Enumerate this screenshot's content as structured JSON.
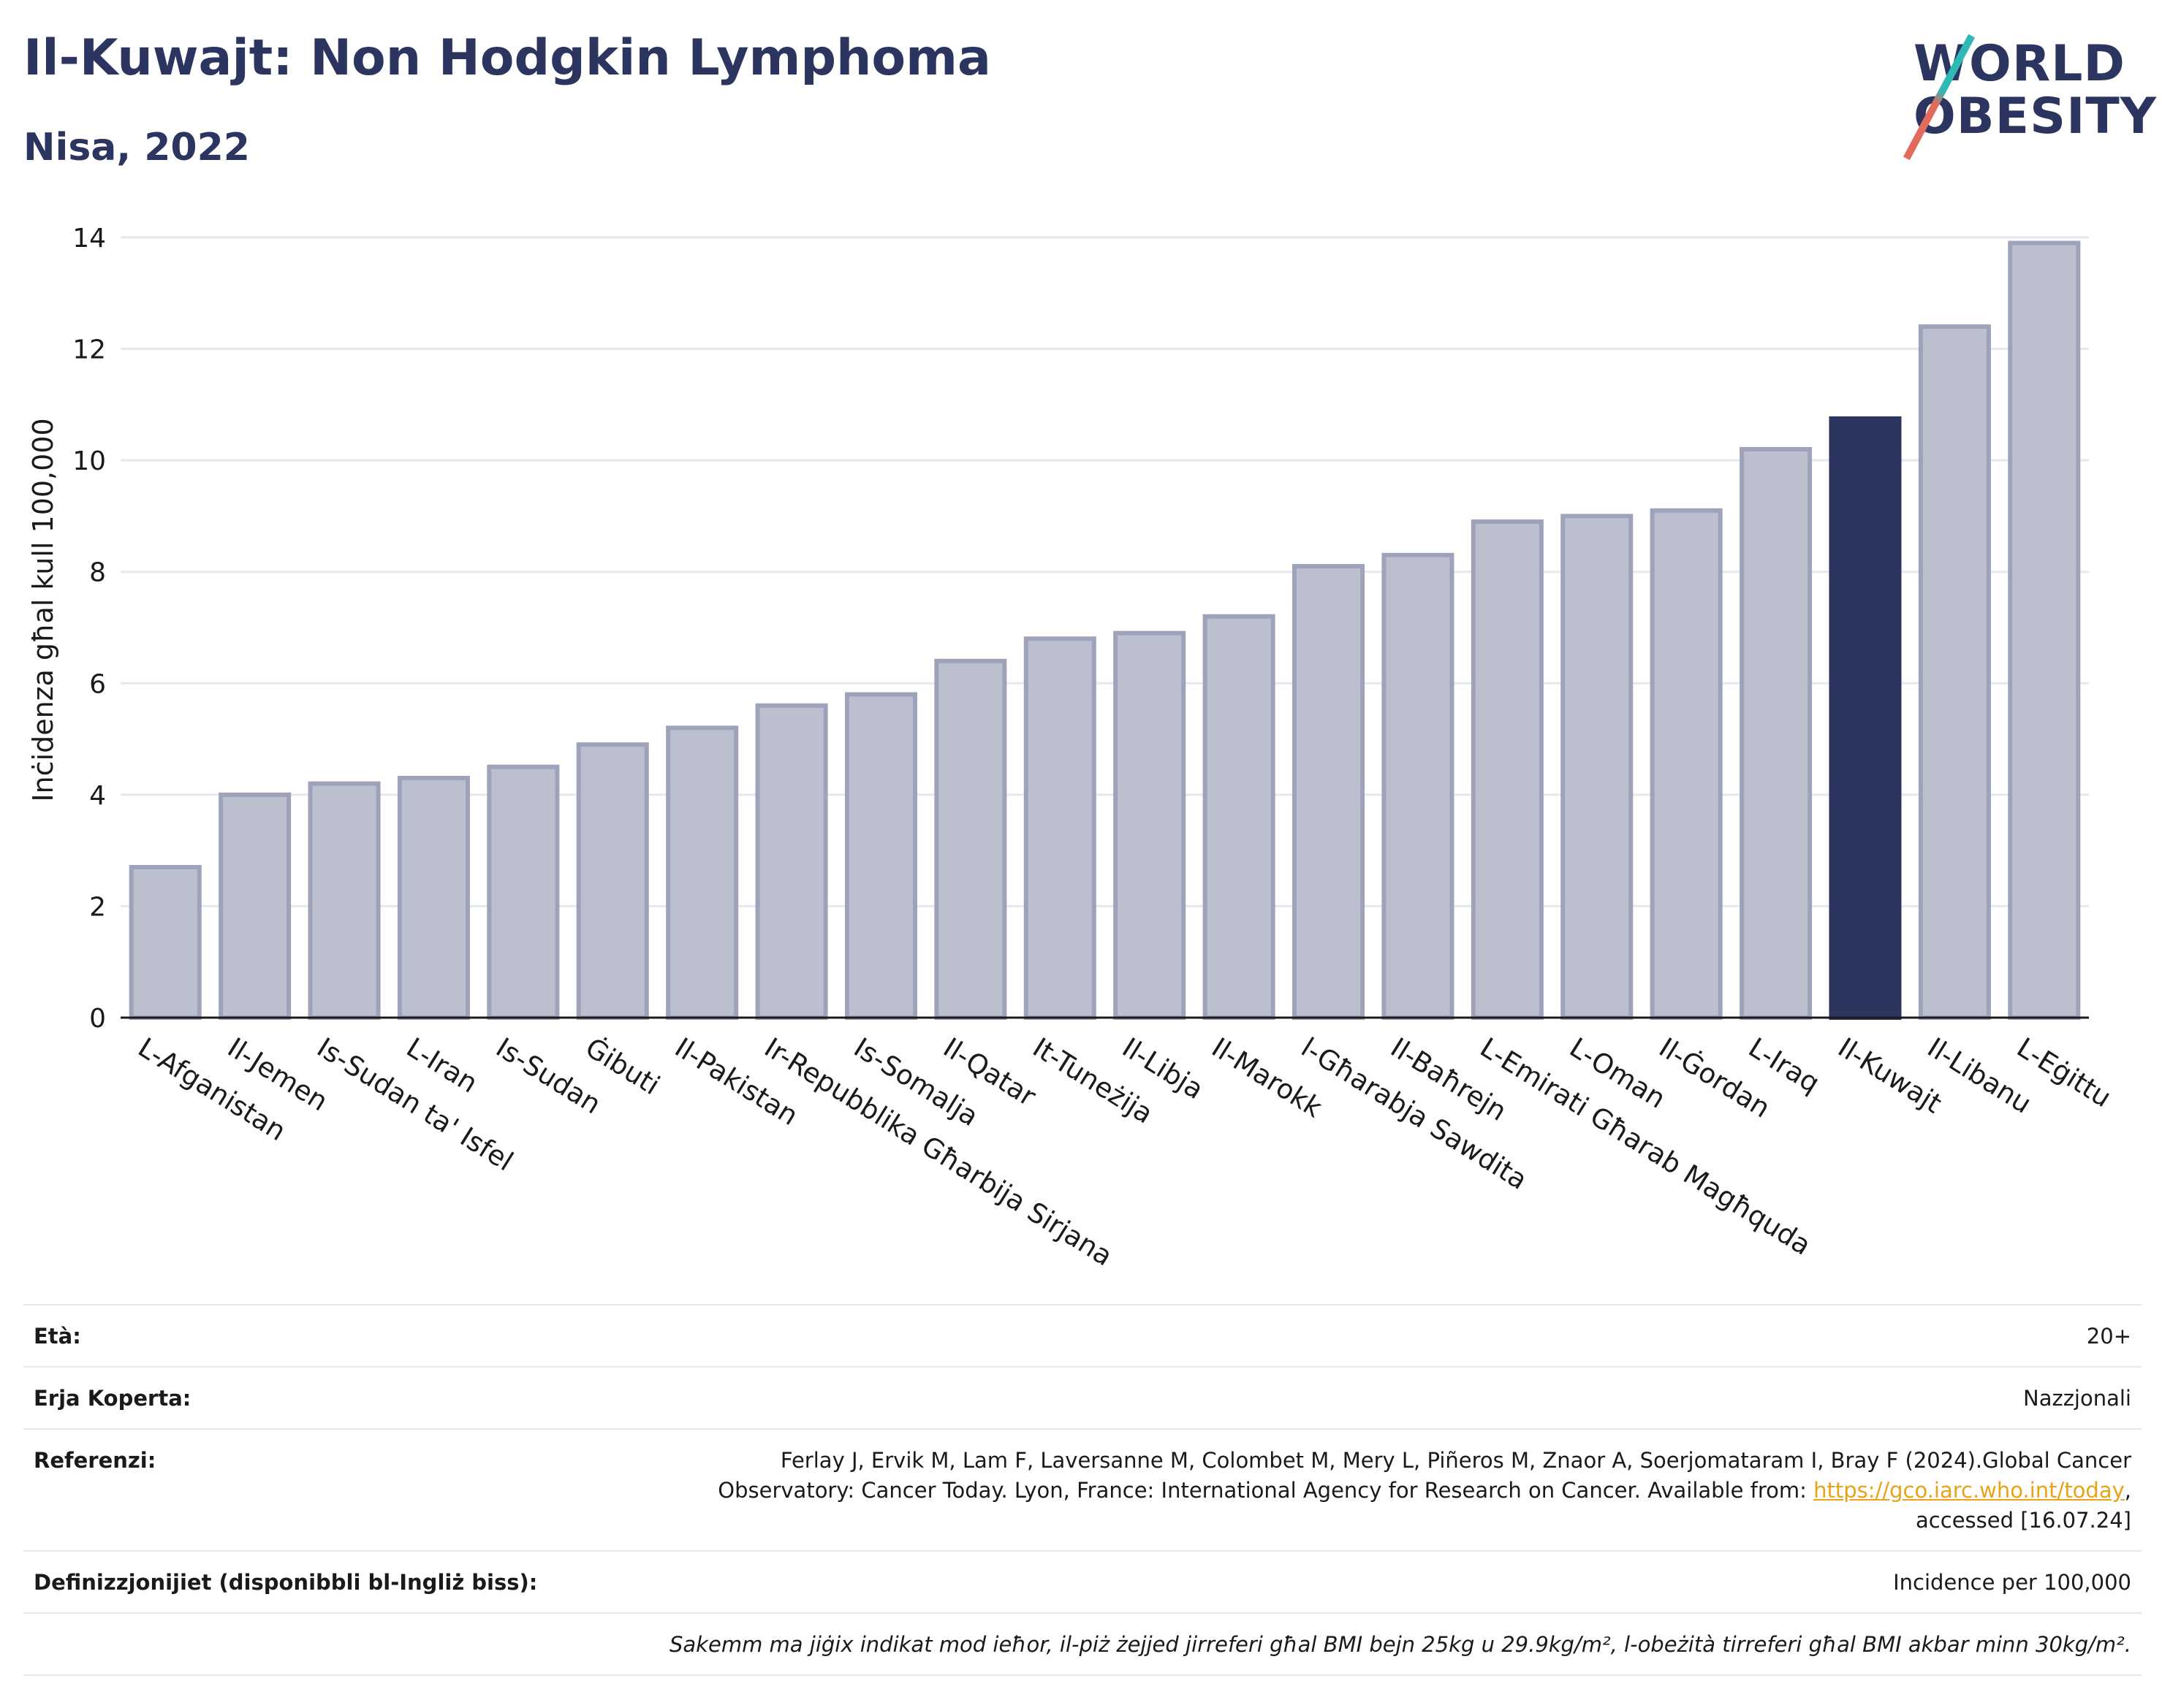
{
  "header": {
    "title": "Il-Kuwajt: Non Hodgkin Lymphoma",
    "subtitle": "Nisa, 2022"
  },
  "logo": {
    "line1": "WORLD",
    "line2": "OBESITY"
  },
  "chart_data": {
    "type": "bar",
    "ylabel": "Inċidenza għal kull 100,000",
    "ylim": [
      0,
      14
    ],
    "yticks": [
      0,
      2,
      4,
      6,
      8,
      10,
      12,
      14
    ],
    "grid": true,
    "highlight": "Il-Kuwajt",
    "colors": {
      "bar": "#bcc0ce",
      "bar_edge": "#9ea3bb",
      "highlight": "#2c3560",
      "grid": "#e6e8f0"
    },
    "categories": [
      "L-Afganistan",
      "Il-Jemen",
      "Is-Sudan ta' Isfel",
      "L-Iran",
      "Is-Sudan",
      "Ġibuti",
      "Il-Pakistan",
      "Ir-Repubblika Għarbija Sirjana",
      "Is-Somalja",
      "Il-Qatar",
      "It-Tuneżija",
      "Il-Libja",
      "Il-Marokk",
      "l-Għarabja Sawdita",
      "Il-Baħrejn",
      "L-Emirati Għarab Magħquda",
      "L-Oman",
      "Il-Ġordan",
      "L-Iraq",
      "Il-Kuwajt",
      "Il-Libanu",
      "L-Eġittu"
    ],
    "values": [
      2.7,
      4.0,
      4.2,
      4.3,
      4.5,
      4.9,
      5.2,
      5.6,
      5.8,
      6.4,
      6.8,
      6.9,
      7.2,
      8.1,
      8.3,
      8.9,
      9.0,
      9.1,
      10.2,
      10.75,
      12.4,
      13.9
    ]
  },
  "meta": {
    "age_label": "Età:",
    "age_value": "20+",
    "area_label": "Erja Koperta:",
    "area_value": "Nazzjonali",
    "ref_label": "Referenzi:",
    "ref_text_1": "Ferlay J, Ervik M, Lam F, Laversanne M, Colombet M, Mery L, Piñeros M, Znaor A, Soerjomataram I, Bray F (2024).Global Cancer",
    "ref_text_2": "Observatory: Cancer Today. Lyon, France: International Agency for Research on Cancer. Available from: ",
    "ref_link": "https://gco.iarc.who.int/today",
    "ref_text_3": ",",
    "ref_text_4": "accessed [16.07.24]",
    "def_label": "Definizzjonijiet (disponibbli bl-Ingliż biss):",
    "def_value": "Incidence per 100,000",
    "note": "Sakemm ma jiġix indikat mod ieħor, il-piż żejjed jirreferi għal BMI bejn 25kg u 29.9kg/m², l-obeżità tirreferi għal BMI akbar minn 30kg/m²."
  }
}
